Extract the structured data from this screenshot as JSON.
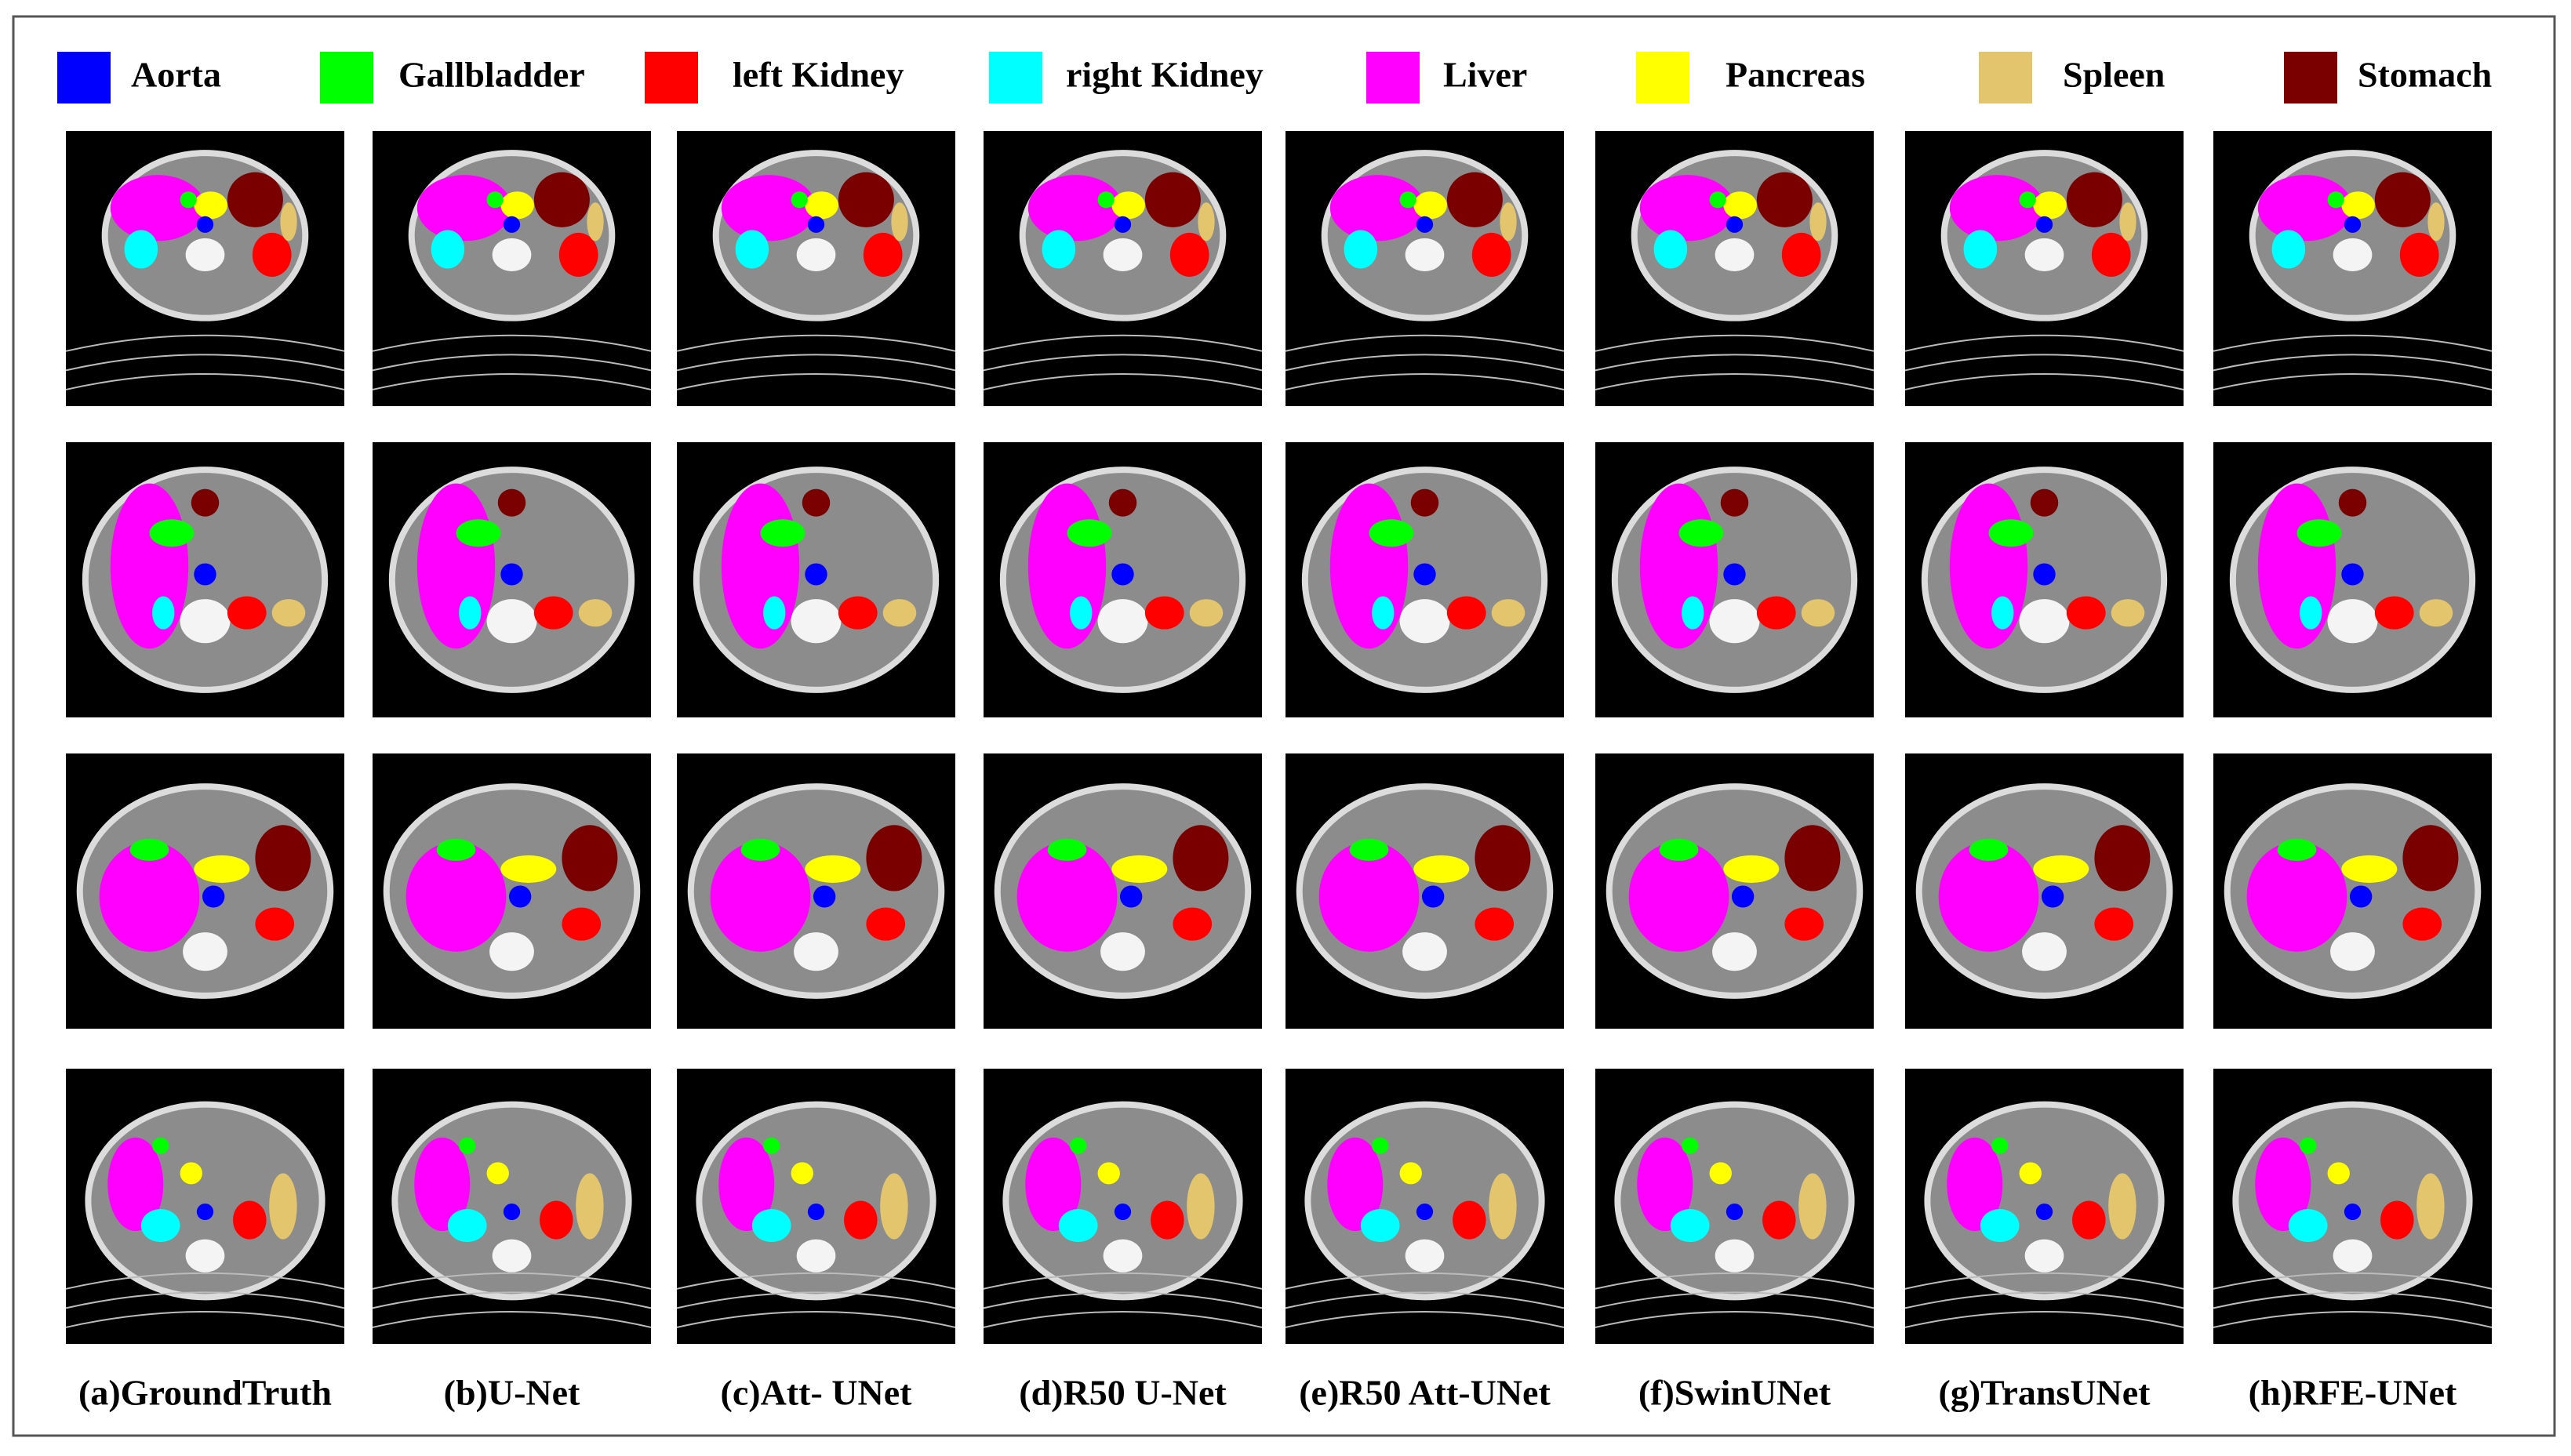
{
  "legend": [
    {
      "label": "Aorta",
      "color": "#0000ff"
    },
    {
      "label": "Gallbladder",
      "color": "#00ff00"
    },
    {
      "label": "left Kidney",
      "color": "#ff0000"
    },
    {
      "label": "right Kidney",
      "color": "#00ffff"
    },
    {
      "label": "Liver",
      "color": "#ff00ff"
    },
    {
      "label": "Pancreas",
      "color": "#ffff00"
    },
    {
      "label": "Spleen",
      "color": "#e3c56e"
    },
    {
      "label": "Stomach",
      "color": "#7a0000"
    }
  ],
  "columns": [
    "(a)GroundTruth",
    "(b)U-Net",
    "(c)Att- UNet",
    "(d)R50 U-Net",
    "(e)R50 Att-UNet",
    "(f)SwinUNet",
    "(g)TransUNet",
    "(h)RFE-UNet"
  ]
}
